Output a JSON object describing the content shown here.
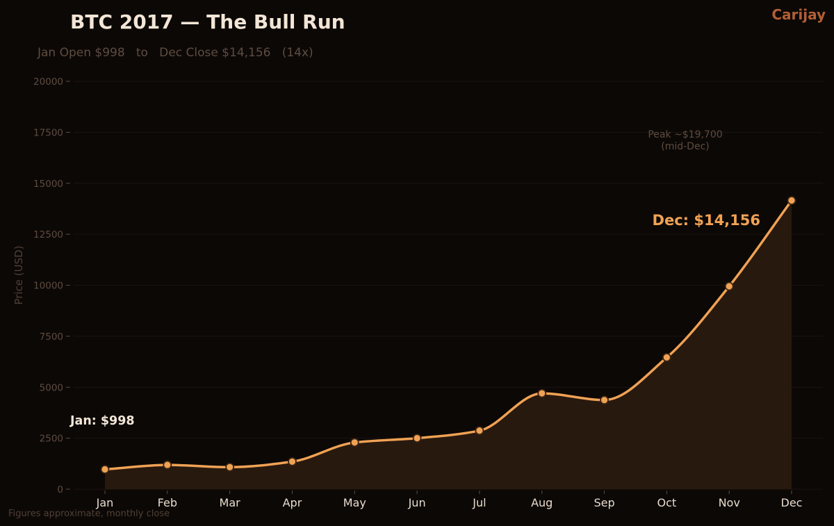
{
  "chart_data": {
    "type": "line",
    "title": "BTC 2017 — The Bull Run",
    "subtitle": "Jan Open $998   to   Dec Close $14,156   (14x)",
    "brand": "Carijay",
    "ylabel": "Price (USD)",
    "xlabel": "",
    "categories": [
      "Jan",
      "Feb",
      "Mar",
      "Apr",
      "May",
      "Jun",
      "Jul",
      "Aug",
      "Sep",
      "Oct",
      "Nov",
      "Dec"
    ],
    "values": [
      970,
      1190,
      1080,
      1350,
      2290,
      2500,
      2870,
      4700,
      4370,
      6460,
      9950,
      14156
    ],
    "ylim": [
      0,
      20000
    ],
    "yticks": [
      "0",
      "2500",
      "5000",
      "7500",
      "10000",
      "12500",
      "15000",
      "17500",
      "20000"
    ],
    "grid": true,
    "legend": "none",
    "annotations": {
      "peak_line1": "Peak ~$19,700",
      "peak_line2": "(mid-Dec)",
      "jan_label": "Jan: $998",
      "dec_label": "Dec: $14,156"
    },
    "footnote": "Figures approximate, monthly close",
    "colors": {
      "background": "#0c0806",
      "line": "#f0a254",
      "area": "#2a1a10",
      "grid": "#1b1410",
      "text_muted": "#5e4c40"
    }
  }
}
